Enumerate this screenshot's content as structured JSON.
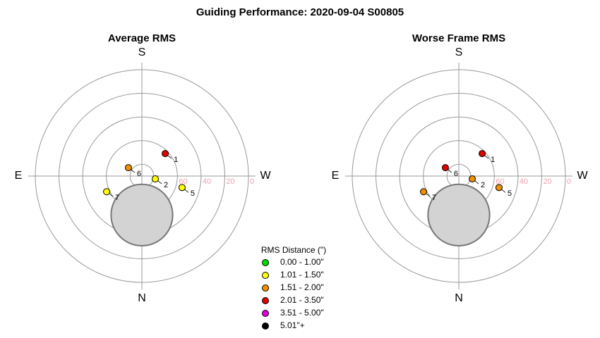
{
  "title": "Guiding Performance: 2020-09-04 S00805",
  "legend": {
    "title": "RMS Distance (\")",
    "entries": [
      {
        "name": "0.00 - 1.00\"",
        "color": "#00dd00"
      },
      {
        "name": "1.01 - 1.50\"",
        "color": "#ffff00"
      },
      {
        "name": "1.51 - 2.00\"",
        "color": "#f09000"
      },
      {
        "name": "2.01 - 3.50\"",
        "color": "#e00000"
      },
      {
        "name": "3.51 - 5.00\"",
        "color": "#e000e0"
      },
      {
        "name": "5.01\"+",
        "color": "#000000"
      }
    ]
  },
  "chart_data": [
    {
      "type": "polar",
      "title": "Average RMS",
      "directions": [
        "S",
        "E",
        "W",
        "N"
      ],
      "rlim": [
        90,
        0
      ],
      "rgrid": [
        80,
        60,
        40,
        20,
        0
      ],
      "rticks": [
        60,
        40,
        20,
        0
      ],
      "obstruction": {
        "az": 0,
        "alt": 57,
        "radius": 26,
        "color": "#d3d3d3"
      },
      "labels": [
        "1",
        "2",
        "5",
        "6",
        "7"
      ],
      "az": [
        226,
        282,
        286,
        122,
        66
      ],
      "alt": [
        62.6,
        78.4,
        54.7,
        76.6,
        57.4
      ],
      "colors": [
        "#e00000",
        "#ffff00",
        "#ffff00",
        "#f09000",
        "#ffff00"
      ]
    },
    {
      "type": "polar",
      "title": "Worse Frame RMS",
      "directions": [
        "S",
        "E",
        "W",
        "N"
      ],
      "rlim": [
        90,
        0
      ],
      "rgrid": [
        80,
        60,
        40,
        20,
        0
      ],
      "rticks": [
        60,
        40,
        20,
        0
      ],
      "obstruction": {
        "az": 0,
        "alt": 57,
        "radius": 26,
        "color": "#d3d3d3"
      },
      "labels": [
        "1",
        "2",
        "5",
        "6",
        "7"
      ],
      "az": [
        226,
        282,
        286,
        122,
        66
      ],
      "alt": [
        62.6,
        78.4,
        54.7,
        76.6,
        57.4
      ],
      "colors": [
        "#e00000",
        "#f09000",
        "#f09000",
        "#e00000",
        "#f09000"
      ]
    }
  ]
}
